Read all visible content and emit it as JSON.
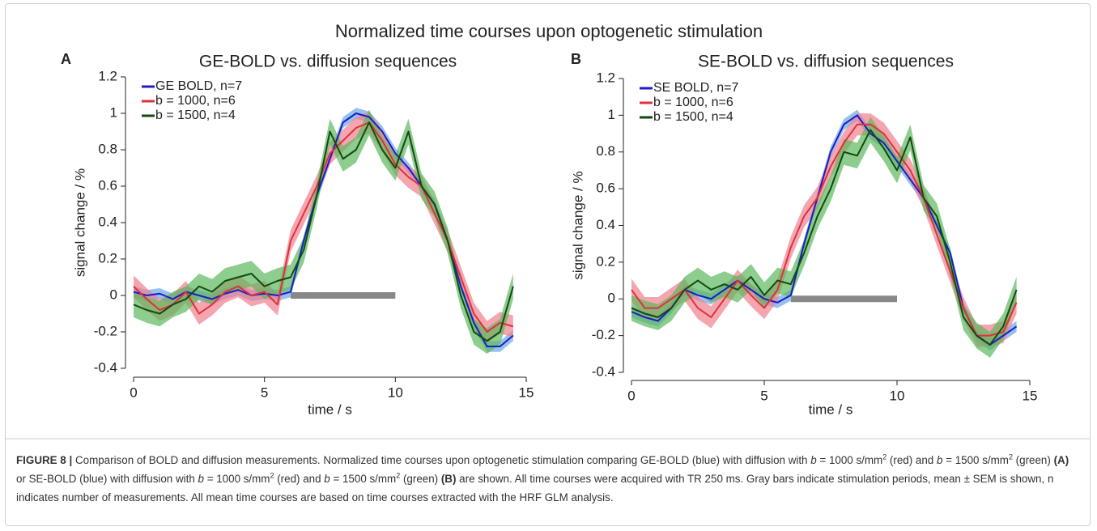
{
  "title": "Normalized time courses upon optogenetic stimulation",
  "chart_data": [
    {
      "type": "line",
      "panel": "A",
      "title": "GE-BOLD vs. diffusion sequences",
      "xlabel": "time / s",
      "ylabel": "signal change / %",
      "x": [
        0,
        0.5,
        1,
        1.5,
        2,
        2.5,
        3,
        3.5,
        4,
        4.5,
        5,
        5.5,
        6,
        6.5,
        7,
        7.5,
        8,
        8.5,
        9,
        9.5,
        10,
        10.5,
        11,
        11.5,
        12,
        12.5,
        13,
        13.5,
        14,
        14.5
      ],
      "series": [
        {
          "name": "GE BOLD, n=7",
          "color": "#1c1cc8",
          "band_color": "#6aa8e8",
          "error": 0.03,
          "values": [
            0.02,
            0,
            0.01,
            -0.02,
            0.02,
            0,
            -0.02,
            0.01,
            0.03,
            0,
            0.01,
            0,
            0.02,
            0.3,
            0.55,
            0.75,
            0.95,
            1.0,
            0.98,
            0.9,
            0.78,
            0.7,
            0.6,
            0.5,
            0.3,
            0.05,
            -0.15,
            -0.28,
            -0.28,
            -0.22
          ]
        },
        {
          "name": "b = 1000, n=6",
          "color": "#e0303a",
          "band_color": "#f0808e",
          "error": 0.06,
          "values": [
            0.05,
            -0.02,
            -0.08,
            -0.05,
            0.02,
            -0.1,
            -0.05,
            0.02,
            0.05,
            0,
            0.02,
            -0.05,
            0.3,
            0.45,
            0.6,
            0.78,
            0.85,
            0.92,
            0.95,
            0.85,
            0.72,
            0.65,
            0.6,
            0.45,
            0.3,
            0.1,
            -0.1,
            -0.2,
            -0.15,
            -0.17
          ]
        },
        {
          "name": "b = 1500, n=4",
          "color": "#124a12",
          "band_color": "#5cb85c",
          "error": 0.07,
          "values": [
            -0.05,
            -0.08,
            -0.1,
            -0.05,
            -0.02,
            0.05,
            0.02,
            0.08,
            0.1,
            0.12,
            0.05,
            0.08,
            0.1,
            0.25,
            0.55,
            0.9,
            0.75,
            0.8,
            0.95,
            0.8,
            0.7,
            0.9,
            0.6,
            0.5,
            0.3,
            0.0,
            -0.2,
            -0.25,
            -0.2,
            0.05
          ]
        }
      ],
      "stimulus": [
        6,
        10
      ],
      "stimulus_color": "#888888",
      "xlim": [
        0,
        15
      ],
      "xticks": [
        0,
        5,
        10,
        15
      ],
      "ylim": [
        -0.4,
        1.2
      ],
      "yticks": [
        -0.4,
        -0.2,
        0,
        0.2,
        0.4,
        0.6,
        0.8,
        1,
        1.2
      ],
      "legend": "upper left"
    },
    {
      "type": "line",
      "panel": "B",
      "title": "SE-BOLD vs. diffusion sequences",
      "xlabel": "time / s",
      "ylabel": "signal change / %",
      "x": [
        0,
        0.5,
        1,
        1.5,
        2,
        2.5,
        3,
        3.5,
        4,
        4.5,
        5,
        5.5,
        6,
        6.5,
        7,
        7.5,
        8,
        8.5,
        9,
        9.5,
        10,
        10.5,
        11,
        11.5,
        12,
        12.5,
        13,
        13.5,
        14,
        14.5
      ],
      "series": [
        {
          "name": "SE BOLD, n=7",
          "color": "#1c1cc8",
          "band_color": "#6aa8e8",
          "error": 0.03,
          "values": [
            -0.07,
            -0.1,
            -0.12,
            -0.05,
            0.05,
            0.02,
            0.0,
            0.05,
            0.1,
            0.05,
            0.0,
            -0.02,
            0.02,
            0.3,
            0.55,
            0.8,
            0.95,
            1.0,
            0.9,
            0.85,
            0.75,
            0.65,
            0.55,
            0.4,
            0.25,
            -0.05,
            -0.2,
            -0.25,
            -0.2,
            -0.15
          ]
        },
        {
          "name": "b = 1000, n=6",
          "color": "#e0303a",
          "band_color": "#f0808e",
          "error": 0.06,
          "values": [
            0.05,
            -0.05,
            -0.05,
            0.0,
            0.05,
            -0.05,
            -0.1,
            0.0,
            0.1,
            0.02,
            -0.05,
            0.05,
            0.28,
            0.45,
            0.55,
            0.72,
            0.85,
            0.95,
            0.95,
            0.9,
            0.8,
            0.7,
            0.55,
            0.35,
            0.15,
            -0.05,
            -0.2,
            -0.2,
            -0.18,
            -0.02
          ]
        },
        {
          "name": "b = 1500, n=4",
          "color": "#124a12",
          "band_color": "#5cb85c",
          "error": 0.07,
          "values": [
            -0.05,
            -0.08,
            -0.1,
            -0.05,
            0.05,
            0.1,
            0.05,
            0.08,
            0.05,
            0.12,
            0.02,
            0.1,
            0.08,
            0.25,
            0.45,
            0.6,
            0.8,
            0.78,
            0.92,
            0.82,
            0.7,
            0.88,
            0.55,
            0.45,
            0.2,
            -0.1,
            -0.2,
            -0.25,
            -0.15,
            0.05
          ]
        }
      ],
      "stimulus": [
        6,
        10
      ],
      "stimulus_color": "#888888",
      "xlim": [
        0,
        15
      ],
      "xticks": [
        0,
        5,
        10,
        15
      ],
      "ylim": [
        -0.4,
        1.2
      ],
      "yticks": [
        -0.4,
        -0.2,
        0,
        0.2,
        0.4,
        0.6,
        0.8,
        1,
        1.2
      ],
      "legend": "upper left"
    }
  ],
  "caption": [
    "FIGURE 8 |",
    " Comparison of BOLD and diffusion measurements. Normalized time courses upon optogenetic stimulation comparing GE-BOLD (blue) with diffusion with ",
    "b",
    " = 1000 s/mm",
    "2",
    " (red) and ",
    "b",
    " = 1500 s/mm",
    "2",
    " (green) ",
    "(A)",
    " or SE-BOLD (blue) with diffusion with ",
    "b",
    " = 1000 s/mm",
    "2",
    " (red) and ",
    "b",
    " = 1500 s/mm",
    "2",
    " (green) ",
    "(B)",
    " are shown. All time courses were acquired with TR 250 ms. Gray bars indicate stimulation periods, mean ± SEM is shown, n indicates number of measurements. All mean time courses are based on time courses extracted with the HRF GLM analysis."
  ]
}
